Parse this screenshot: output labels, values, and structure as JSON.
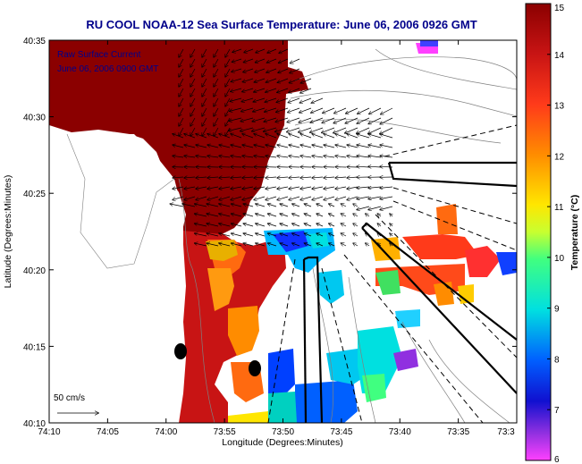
{
  "title": "RU COOL  NOAA-12  Sea Surface Temperature:  June 06, 2006 0926 GMT",
  "map": {
    "xlabel": "Longitude (Degrees:Minutes)",
    "ylabel": "Latitude (Degrees:Minutes)",
    "x_ticks": [
      "74:10",
      "74:05",
      "74:00",
      "73:55",
      "73:50",
      "73:45",
      "73:40",
      "73:35",
      "73:3"
    ],
    "y_ticks": [
      "40:35",
      "40:30",
      "40:25",
      "40:20",
      "40:15",
      "40:10"
    ],
    "legend_lines": [
      "Raw Surface Current",
      "June 06, 2006 0900 GMT"
    ],
    "scale_label": "50 cm/s"
  },
  "colorbar": {
    "label": "Temperature (°C)",
    "ticks": [
      "15",
      "14",
      "13",
      "12",
      "11",
      "10",
      "9",
      "8",
      "7",
      "6"
    ],
    "range": [
      6,
      15
    ]
  }
}
